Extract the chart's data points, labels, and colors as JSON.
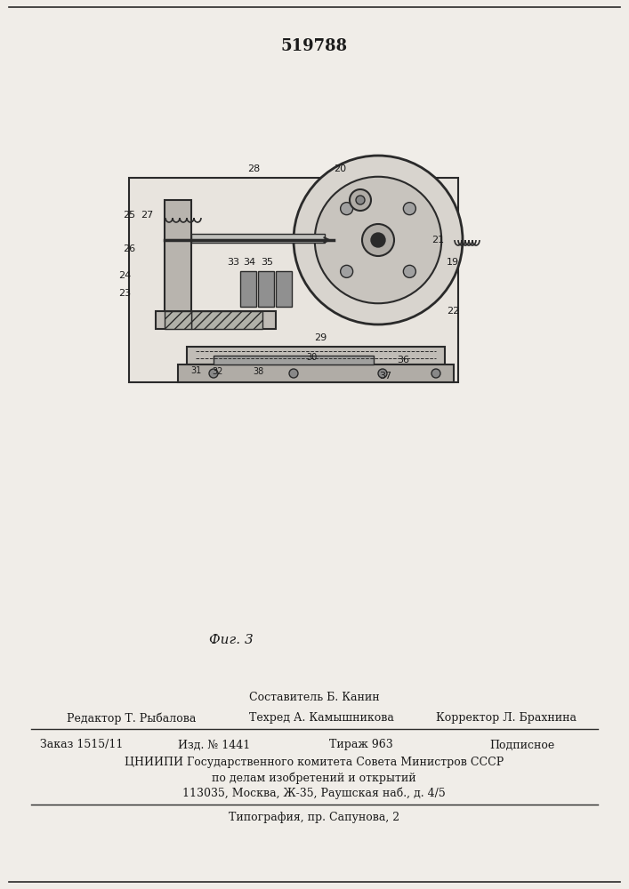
{
  "patent_number": "519788",
  "fig_label": "Фиг. 3",
  "composer": "Составитель Б. Канин",
  "editor": "Редактор Т. Рыбалова",
  "techred": "Техред А. Камышникова",
  "corrector": "Корректор Л. Брахнина",
  "order": "Заказ 1515/11",
  "edition": "Изд. № 1441",
  "circulation": "Тираж 963",
  "subscription": "Подписное",
  "org_line1": "ЦНИИПИ Государственного комитета Совета Министров СССР",
  "org_line2": "по делам изобретений и открытий",
  "org_line3": "113035, Москва, Ж-35, Раушская наб., д. 4/5",
  "print_line": "Типография, пр. Сапунова, 2",
  "bg_color": "#f0ede8",
  "line_color": "#2a2a2a",
  "text_color": "#1a1a1a"
}
